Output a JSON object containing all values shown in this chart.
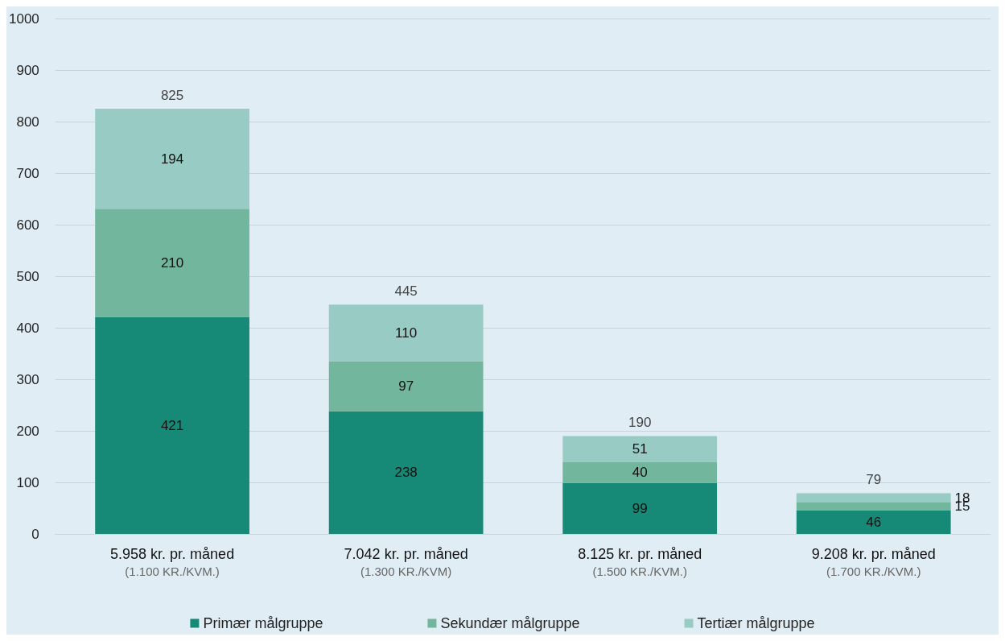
{
  "chart_data": {
    "type": "bar",
    "stacked": true,
    "categories": [
      "5.958 kr. pr. måned\n(1.100 KR./KVM.)",
      "7.042 kr. pr. måned\n(1.300 KR./KVM)",
      "8.125 kr. pr. måned\n(1.500 KR./KVM.)",
      "9.208 kr. pr. måned\n(1.700 KR./KVM.)"
    ],
    "series": [
      {
        "name": "Primær målgruppe",
        "color": "#178a77",
        "values": [
          421,
          238,
          99,
          46
        ]
      },
      {
        "name": "Sekundær målgruppe",
        "color": "#72b79d",
        "values": [
          210,
          97,
          40,
          15
        ]
      },
      {
        "name": "Tertiær målgruppe",
        "color": "#98cbc3",
        "values": [
          194,
          110,
          51,
          18
        ]
      }
    ],
    "totals": [
      "825",
      "445",
      "190",
      "79"
    ],
    "data_labels": true,
    "ylim": [
      0,
      1000
    ],
    "yticks": [
      0,
      100,
      200,
      300,
      400,
      500,
      600,
      700,
      800,
      900,
      1000
    ],
    "grid": "y",
    "legend": "bottom"
  }
}
